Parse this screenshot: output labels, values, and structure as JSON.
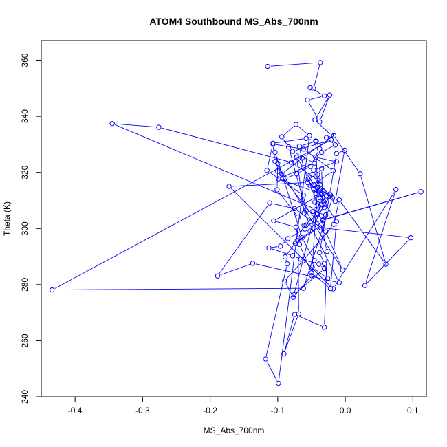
{
  "chart_data": {
    "type": "line",
    "title": "ATOM4 Southbound MS_Abs_700nm",
    "xlabel": "MS_Abs_700nm",
    "ylabel": "Theta (K)",
    "xlim": [
      -0.45,
      0.12
    ],
    "ylim": [
      240,
      367
    ],
    "xticks": [
      -0.4,
      -0.3,
      -0.2,
      -0.1,
      0.0,
      0.1
    ],
    "xtick_labels": [
      "-0.4",
      "-0.3",
      "-0.2",
      "-0.1",
      "0.0",
      "0.1"
    ],
    "yticks": [
      240,
      260,
      280,
      300,
      320,
      340,
      360
    ],
    "ytick_labels": [
      "240",
      "260",
      "280",
      "300",
      "320",
      "340",
      "360"
    ],
    "grid": false,
    "series_color": "#0000ff",
    "marker": "open-circle",
    "series": [
      {
        "x": [
          -0.115,
          -0.037,
          -0.047,
          -0.052,
          -0.031,
          -0.056,
          -0.038,
          -0.023,
          -0.045,
          -0.021,
          -0.028,
          -0.015,
          -0.035,
          -0.044,
          -0.013,
          -0.047,
          -0.049,
          -0.04,
          -0.038,
          -0.022,
          -0.03,
          -0.043,
          -0.345,
          -0.276,
          -0.08,
          -0.04,
          -0.052,
          -0.039,
          -0.034,
          -0.045,
          -0.031,
          -0.042,
          -0.033,
          -0.035,
          -0.041,
          -0.055,
          -0.047,
          -0.043,
          -0.037,
          -0.032,
          -0.036,
          -0.048,
          -0.029,
          -0.033,
          0.112,
          -0.058,
          -0.06,
          -0.085,
          -0.096,
          -0.113,
          -0.078,
          -0.066,
          -0.039,
          -0.031,
          -0.076,
          -0.041,
          -0.062,
          -0.068,
          -0.043,
          -0.038,
          -0.052,
          -0.072,
          -0.089,
          -0.094,
          -0.064,
          -0.017,
          0.022,
          0.06,
          -0.009,
          -0.017,
          -0.063,
          -0.09,
          -0.077,
          -0.05,
          -0.046,
          -0.064,
          -0.104,
          -0.1,
          -0.101,
          -0.07,
          -0.069,
          -0.091,
          -0.075,
          -0.031,
          -0.027,
          -0.036,
          -0.074,
          -0.052,
          -0.024,
          -0.037,
          -0.015,
          -0.001,
          -0.013,
          -0.023,
          -0.038,
          -0.031,
          -0.026,
          -0.049,
          -0.041,
          -0.044,
          -0.058,
          -0.107,
          -0.116,
          -0.062,
          -0.058,
          -0.084,
          -0.094,
          -0.073,
          -0.053,
          -0.099,
          -0.118,
          -0.086,
          -0.089,
          -0.071,
          -0.061,
          -0.041,
          -0.036,
          -0.028,
          -0.056,
          -0.172,
          -0.018,
          0.075,
          0.029,
          0.097,
          -0.036,
          -0.075,
          -0.112,
          -0.189,
          -0.137,
          -0.009,
          -0.061,
          -0.072,
          -0.013,
          -0.022,
          -0.05,
          -0.068,
          -0.073,
          -0.106,
          -0.035,
          -0.099,
          -0.046,
          -0.078,
          -0.021,
          -0.434,
          -0.062,
          -0.019,
          -0.047,
          -0.018,
          -0.062,
          -0.107,
          -0.104,
          -0.004,
          -0.029,
          -0.1
        ],
        "y": [
          357.8,
          359.2,
          349.8,
          350.2,
          347.3,
          345.8,
          338,
          347.6,
          338.7,
          333.3,
          332.4,
          329.8,
          327.2,
          325.4,
          323.8,
          320.8,
          319.3,
          316.1,
          313.8,
          311.9,
          308.6,
          306.8,
          337.4,
          336.1,
          323.6,
          317.2,
          315.3,
          313.4,
          311.1,
          309.4,
          307.5,
          305.4,
          302.8,
          321.4,
          319.2,
          317.6,
          314.1,
          312.5,
          310.9,
          309.6,
          308.1,
          306.1,
          304.8,
          303.1,
          313.1,
          301.2,
          299.8,
          296.4,
          293.7,
          293.1,
          290.3,
          289.1,
          287.3,
          285.7,
          276.4,
          308.8,
          321.7,
          329.3,
          331.1,
          328.4,
          322.1,
          319.5,
          317.8,
          319.4,
          325.1,
          333.1,
          319.5,
          287.3,
          310.2,
          301.5,
          288.4,
          281.3,
          275.5,
          283.2,
          288.6,
          296.7,
          327.2,
          323.2,
          313.8,
          304.1,
          269.6,
          255.3,
          269.4,
          264.8,
          291.8,
          301.2,
          294.7,
          299.1,
          311.4,
          315.6,
          309.7,
          327.9,
          326.7,
          312.3,
          291.4,
          287.5,
          282.2,
          286.2,
          314.6,
          331.2,
          332.1,
          330.4,
          320.7,
          311.9,
          306.2,
          329.1,
          332.7,
          337.1,
          333.1,
          244.8,
          253.5,
          287.4,
          289.9,
          295.8,
          301.1,
          305.1,
          308.6,
          311.6,
          316.4,
          315,
          278.5,
          313.9,
          279.7,
          296.7,
          300.3,
          307.1,
          309.1,
          283.1,
          287.6,
          280.7,
          305.6,
          325.4,
          302.5,
          278.6,
          284.2,
          294.4,
          300.5,
          302.7,
          312.3,
          317.7,
          323.3,
          327.5,
          331.6,
          278.1,
          278.7,
          310.9,
          315.7,
          320.6,
          328.3,
          330.1,
          323.9,
          285.2,
          298.8,
          320.4
        ]
      }
    ]
  }
}
